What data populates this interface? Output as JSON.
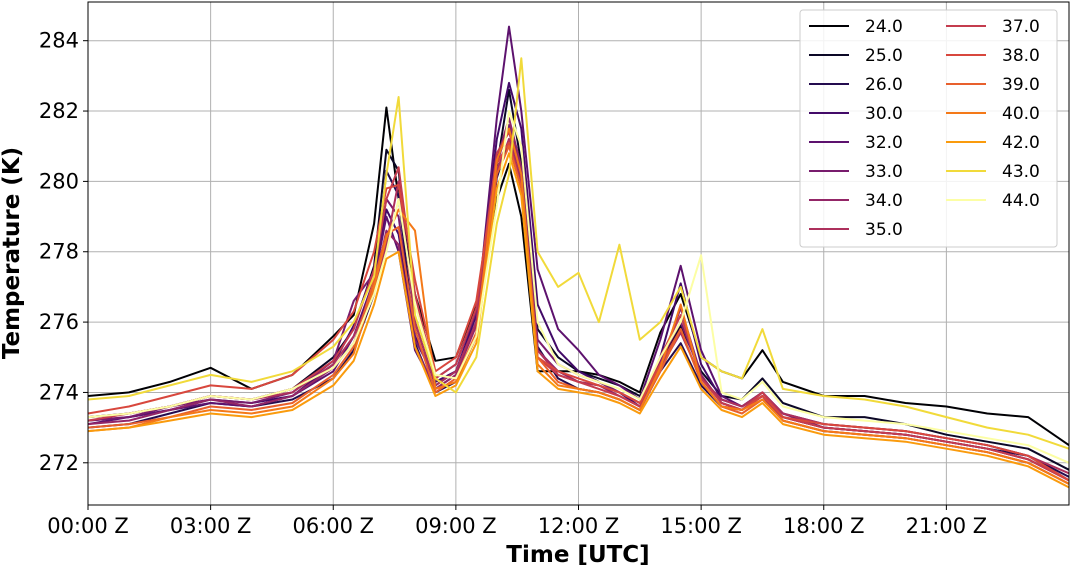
{
  "chart_data": {
    "type": "line",
    "xlabel": "Time [UTC]",
    "ylabel": "Temperature (K)",
    "xlim": [
      0,
      24
    ],
    "ylim": [
      270.8,
      285.1
    ],
    "grid": true,
    "legend_placement": "top-right",
    "legend_columns": 2,
    "xticks": [
      {
        "value": 0,
        "label": "00:00 Z"
      },
      {
        "value": 3,
        "label": "03:00 Z"
      },
      {
        "value": 6,
        "label": "06:00 Z"
      },
      {
        "value": 9,
        "label": "09:00 Z"
      },
      {
        "value": 12,
        "label": "12:00 Z"
      },
      {
        "value": 15,
        "label": "15:00 Z"
      },
      {
        "value": 18,
        "label": "18:00 Z"
      },
      {
        "value": 21,
        "label": "21:00 Z"
      }
    ],
    "yticks": [
      {
        "value": 272,
        "label": "272"
      },
      {
        "value": 274,
        "label": "274"
      },
      {
        "value": 276,
        "label": "276"
      },
      {
        "value": 278,
        "label": "278"
      },
      {
        "value": 280,
        "label": "280"
      },
      {
        "value": 282,
        "label": "282"
      },
      {
        "value": 284,
        "label": "284"
      }
    ],
    "x": [
      0,
      1,
      2,
      3,
      4,
      5,
      6,
      6.5,
      7,
      7.3,
      7.6,
      8,
      8.5,
      9,
      9.5,
      10,
      10.3,
      10.6,
      11,
      11.5,
      12,
      12.5,
      13,
      13.5,
      14,
      14.5,
      15,
      15.5,
      16,
      16.5,
      17,
      18,
      19,
      20,
      21,
      22,
      23,
      24
    ],
    "series": [
      {
        "name": "24.0",
        "color": "#000004",
        "values": [
          273.9,
          274.0,
          274.3,
          274.7,
          274.1,
          274.5,
          275.6,
          276.2,
          278.8,
          282.1,
          279.5,
          276.8,
          274.9,
          275.0,
          276.5,
          279.5,
          280.5,
          279.0,
          274.6,
          274.6,
          274.6,
          274.5,
          274.3,
          274.0,
          275.7,
          276.8,
          275.0,
          274.6,
          274.4,
          275.2,
          274.3,
          273.9,
          273.9,
          273.7,
          273.6,
          273.4,
          273.3,
          272.5
        ]
      },
      {
        "name": "25.0",
        "color": "#0c0826",
        "values": [
          273.3,
          273.4,
          273.6,
          273.9,
          273.8,
          274.1,
          275.0,
          275.8,
          277.6,
          280.9,
          280.3,
          276.0,
          274.2,
          274.6,
          276.0,
          280.4,
          282.6,
          280.5,
          275.8,
          275.0,
          274.6,
          274.4,
          274.2,
          273.9,
          274.8,
          275.9,
          274.6,
          273.9,
          273.8,
          274.4,
          273.7,
          273.3,
          273.3,
          273.1,
          272.8,
          272.6,
          272.4,
          271.8
        ]
      },
      {
        "name": "26.0",
        "color": "#240c4f",
        "values": [
          273.0,
          273.1,
          273.4,
          273.7,
          273.6,
          273.8,
          274.4,
          275.2,
          276.8,
          280.3,
          279.6,
          275.4,
          274.0,
          274.3,
          275.6,
          280.1,
          281.2,
          280.1,
          275.3,
          274.4,
          274.1,
          274.0,
          273.8,
          273.5,
          274.6,
          275.4,
          274.2,
          273.6,
          273.5,
          273.9,
          273.3,
          273.0,
          272.9,
          272.8,
          272.6,
          272.4,
          272.2,
          271.6
        ]
      },
      {
        "name": "30.0",
        "color": "#420a68",
        "values": [
          273.2,
          273.3,
          273.5,
          273.8,
          273.7,
          273.9,
          274.8,
          275.9,
          277.5,
          279.2,
          278.5,
          275.6,
          274.3,
          274.6,
          276.2,
          281.2,
          282.8,
          281.5,
          276.5,
          275.2,
          274.6,
          274.3,
          274.0,
          273.6,
          275.0,
          277.1,
          274.8,
          273.8,
          273.6,
          274.0,
          273.4,
          273.1,
          273.0,
          272.9,
          272.7,
          272.5,
          272.2,
          271.5
        ]
      },
      {
        "name": "32.0",
        "color": "#5d126e",
        "values": [
          273.1,
          273.3,
          273.5,
          273.7,
          273.6,
          273.9,
          274.6,
          275.6,
          277.2,
          279.0,
          278.0,
          275.2,
          274.1,
          274.5,
          276.0,
          281.8,
          284.4,
          282.0,
          277.5,
          275.8,
          275.2,
          274.5,
          274.2,
          273.8,
          275.5,
          277.6,
          275.2,
          273.9,
          273.6,
          274.0,
          273.4,
          273.0,
          272.9,
          272.8,
          272.6,
          272.4,
          272.1,
          271.5
        ]
      },
      {
        "name": "33.0",
        "color": "#781c6d",
        "values": [
          273.2,
          273.3,
          273.6,
          273.8,
          273.7,
          274.0,
          274.9,
          276.6,
          277.4,
          279.5,
          279.0,
          275.5,
          274.4,
          274.8,
          276.3,
          280.5,
          281.6,
          280.3,
          275.5,
          274.8,
          274.5,
          274.3,
          274.0,
          273.7,
          274.9,
          276.0,
          274.5,
          273.7,
          273.5,
          273.9,
          273.2,
          272.9,
          272.8,
          272.7,
          272.5,
          272.3,
          272.0,
          271.4
        ]
      },
      {
        "name": "34.0",
        "color": "#932667",
        "values": [
          273.1,
          273.2,
          273.5,
          273.8,
          273.6,
          273.9,
          274.7,
          275.4,
          277.0,
          278.6,
          278.2,
          275.3,
          274.1,
          274.5,
          275.9,
          280.6,
          281.8,
          280.4,
          275.2,
          274.6,
          274.3,
          274.2,
          273.9,
          273.6,
          274.8,
          276.4,
          274.5,
          273.7,
          273.5,
          273.9,
          273.3,
          273.0,
          272.9,
          272.8,
          272.6,
          272.4,
          272.1,
          271.5
        ]
      },
      {
        "name": "35.0",
        "color": "#ad305c",
        "values": [
          273.3,
          273.4,
          273.6,
          273.9,
          273.8,
          274.0,
          274.8,
          275.6,
          276.9,
          278.2,
          280.0,
          276.0,
          274.2,
          274.6,
          276.0,
          280.3,
          281.2,
          280.0,
          275.2,
          274.5,
          274.3,
          274.2,
          274.0,
          273.7,
          274.7,
          275.7,
          274.4,
          273.8,
          273.6,
          274.0,
          273.4,
          273.1,
          273.0,
          272.9,
          272.7,
          272.5,
          272.2,
          271.7
        ]
      },
      {
        "name": "37.0",
        "color": "#c43c4e",
        "values": [
          273.2,
          273.4,
          273.6,
          273.9,
          273.8,
          274.1,
          274.9,
          275.8,
          277.5,
          279.5,
          280.4,
          276.8,
          274.4,
          274.8,
          276.4,
          280.8,
          281.4,
          280.2,
          275.0,
          274.5,
          274.3,
          274.1,
          273.9,
          273.6,
          275.0,
          276.2,
          274.4,
          273.7,
          273.5,
          274.0,
          273.3,
          273.0,
          272.9,
          272.8,
          272.6,
          272.4,
          272.1,
          271.5
        ]
      },
      {
        "name": "38.0",
        "color": "#d8473d",
        "values": [
          273.4,
          273.6,
          273.9,
          274.2,
          274.1,
          274.5,
          275.5,
          276.3,
          278.0,
          279.8,
          279.9,
          277.2,
          274.6,
          275.0,
          276.6,
          280.5,
          281.1,
          279.8,
          275.0,
          274.6,
          274.4,
          274.2,
          274.0,
          273.7,
          274.8,
          275.8,
          274.3,
          273.6,
          273.5,
          273.9,
          273.3,
          273.1,
          273.0,
          272.9,
          272.7,
          272.5,
          272.2,
          271.5
        ]
      },
      {
        "name": "39.0",
        "color": "#e8602d",
        "values": [
          273.0,
          273.1,
          273.3,
          273.6,
          273.5,
          273.7,
          274.5,
          275.3,
          277.2,
          278.5,
          278.7,
          275.8,
          274.0,
          274.4,
          275.7,
          280.2,
          281.0,
          279.8,
          275.0,
          274.3,
          274.1,
          274.0,
          273.8,
          273.5,
          274.6,
          275.8,
          274.3,
          273.6,
          273.4,
          273.8,
          273.2,
          272.9,
          272.8,
          272.7,
          272.5,
          272.3,
          272.0,
          271.4
        ]
      },
      {
        "name": "40.0",
        "color": "#f47918",
        "values": [
          272.9,
          273.0,
          273.3,
          273.5,
          273.4,
          273.6,
          274.4,
          275.1,
          277.0,
          278.4,
          279.2,
          278.6,
          274.1,
          274.3,
          275.6,
          280.6,
          281.5,
          280.2,
          274.8,
          274.2,
          274.1,
          274.0,
          273.8,
          273.5,
          274.7,
          276.5,
          274.3,
          273.6,
          273.5,
          273.8,
          273.2,
          272.9,
          272.8,
          272.7,
          272.5,
          272.3,
          272.0,
          271.4
        ]
      },
      {
        "name": "42.0",
        "color": "#fa9b0d",
        "values": [
          272.9,
          273.0,
          273.2,
          273.4,
          273.3,
          273.5,
          274.2,
          274.9,
          276.5,
          277.8,
          278.0,
          275.3,
          273.9,
          274.2,
          275.4,
          279.8,
          280.8,
          279.6,
          274.6,
          274.1,
          274.0,
          273.9,
          273.7,
          273.4,
          274.4,
          275.3,
          274.1,
          273.5,
          273.3,
          273.7,
          273.1,
          272.8,
          272.7,
          272.6,
          272.4,
          272.2,
          271.9,
          271.3
        ]
      },
      {
        "name": "43.0",
        "color": "#f1da3a",
        "values": [
          273.8,
          273.9,
          274.2,
          274.5,
          274.3,
          274.6,
          275.3,
          276.0,
          277.3,
          280.2,
          282.4,
          276.2,
          274.4,
          274.0,
          275.0,
          278.8,
          280.2,
          283.5,
          278.0,
          277.0,
          277.4,
          276.0,
          278.2,
          275.5,
          276.0,
          277.0,
          275.0,
          274.6,
          274.4,
          275.8,
          274.1,
          273.9,
          273.8,
          273.6,
          273.3,
          273.0,
          272.8,
          272.4
        ]
      },
      {
        "name": "44.0",
        "color": "#fcfea4",
        "values": [
          273.3,
          273.4,
          273.6,
          273.9,
          273.8,
          274.1,
          274.7,
          275.4,
          276.8,
          278.0,
          279.5,
          276.5,
          274.5,
          274.4,
          275.6,
          279.3,
          282.0,
          281.0,
          276.0,
          274.8,
          274.5,
          274.3,
          274.1,
          273.8,
          275.0,
          276.0,
          277.9,
          274.0,
          273.8,
          274.3,
          273.6,
          273.3,
          273.2,
          273.1,
          272.9,
          272.7,
          272.5,
          272.0
        ]
      }
    ]
  }
}
